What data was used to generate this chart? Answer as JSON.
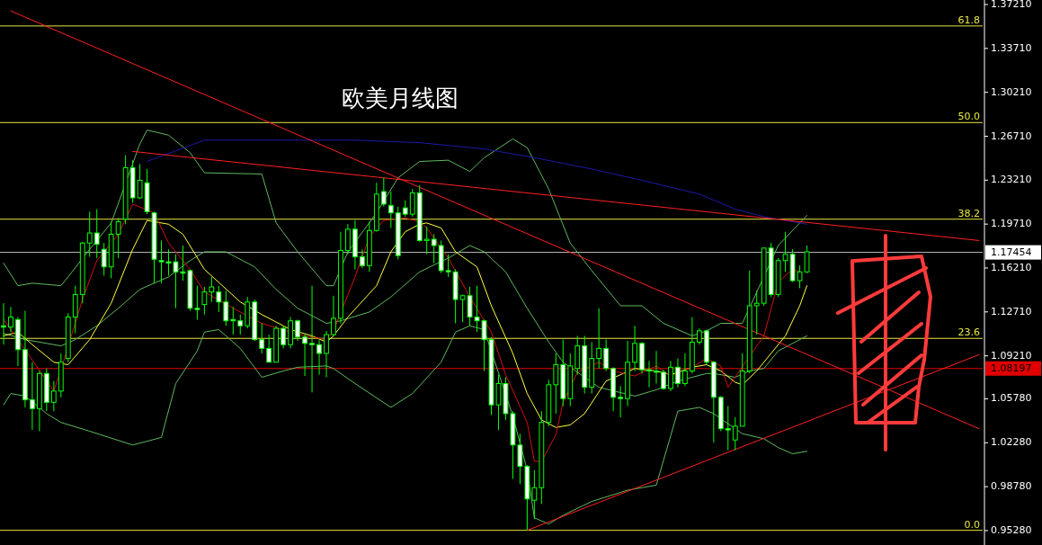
{
  "chart_data": {
    "type": "candlestick",
    "title": "欧美月线图",
    "categories": [
      null,
      null,
      null,
      null,
      null,
      null,
      null,
      null,
      null,
      null,
      null,
      null,
      null,
      null,
      null,
      null,
      null,
      null,
      null,
      null,
      null,
      null,
      null,
      null,
      null,
      null,
      null,
      null,
      null,
      null,
      null,
      null,
      null,
      null,
      null,
      null,
      null,
      null,
      null,
      null,
      null,
      null,
      null,
      null,
      null,
      null,
      null,
      null,
      null,
      null,
      null,
      null,
      null,
      null,
      null,
      null,
      null,
      null,
      null,
      null,
      null,
      null,
      null,
      null,
      null,
      null,
      null,
      null,
      null,
      null,
      null,
      null,
      null,
      null,
      null,
      null,
      null,
      null,
      null,
      null,
      null,
      null,
      null,
      null,
      null,
      null,
      null,
      null,
      null,
      null,
      null,
      null,
      null,
      null,
      null,
      null,
      null,
      null,
      null,
      null,
      null,
      null,
      null,
      null,
      null,
      null,
      null,
      null,
      null,
      null,
      null,
      null,
      null,
      null,
      null,
      null,
      null,
      null,
      null,
      null,
      null,
      null,
      null,
      null,
      null,
      null,
      null,
      null,
      null,
      null,
      null,
      null,
      null,
      null,
      null,
      null,
      null
    ],
    "ohlc": [
      [
        1.116,
        1.134,
        1.101,
        1.115
      ],
      [
        1.115,
        1.131,
        1.111,
        1.123
      ],
      [
        1.121,
        1.123,
        1.084,
        1.097
      ],
      [
        1.097,
        1.128,
        1.051,
        1.057
      ],
      [
        1.057,
        1.087,
        1.033,
        1.05
      ],
      [
        1.05,
        1.08,
        1.032,
        1.078
      ],
      [
        1.078,
        1.082,
        1.048,
        1.055
      ],
      [
        1.055,
        1.072,
        1.048,
        1.064
      ],
      [
        1.064,
        1.094,
        1.059,
        1.087
      ],
      [
        1.09,
        1.126,
        1.087,
        1.123
      ],
      [
        1.123,
        1.148,
        1.11,
        1.141
      ],
      [
        1.141,
        1.183,
        1.134,
        1.182
      ],
      [
        1.182,
        1.207,
        1.171,
        1.19
      ],
      [
        1.19,
        1.209,
        1.17,
        1.181
      ],
      [
        1.177,
        1.182,
        1.156,
        1.163
      ],
      [
        1.163,
        1.199,
        1.154,
        1.189
      ],
      [
        1.189,
        1.202,
        1.17,
        1.199
      ],
      [
        1.201,
        1.252,
        1.197,
        1.242
      ],
      [
        1.242,
        1.248,
        1.214,
        1.218
      ],
      [
        1.218,
        1.245,
        1.217,
        1.232
      ],
      [
        1.23,
        1.241,
        1.205,
        1.207
      ],
      [
        1.206,
        1.207,
        1.15,
        1.169
      ],
      [
        1.168,
        1.184,
        1.15,
        1.167
      ],
      [
        1.167,
        1.177,
        1.156,
        1.166
      ],
      [
        1.167,
        1.173,
        1.13,
        1.159
      ],
      [
        1.159,
        1.18,
        1.152,
        1.158
      ],
      [
        1.16,
        1.161,
        1.128,
        1.13
      ],
      [
        1.13,
        1.148,
        1.121,
        1.129
      ],
      [
        1.133,
        1.147,
        1.125,
        1.143
      ],
      [
        1.143,
        1.155,
        1.135,
        1.147
      ],
      [
        1.143,
        1.148,
        1.127,
        1.135
      ],
      [
        1.135,
        1.144,
        1.116,
        1.12
      ],
      [
        1.121,
        1.131,
        1.109,
        1.12
      ],
      [
        1.12,
        1.125,
        1.109,
        1.116
      ],
      [
        1.116,
        1.139,
        1.114,
        1.135
      ],
      [
        1.135,
        1.137,
        1.104,
        1.105
      ],
      [
        1.105,
        1.118,
        1.094,
        1.098
      ],
      [
        1.098,
        1.109,
        1.087,
        1.087
      ],
      [
        1.087,
        1.116,
        1.087,
        1.114
      ],
      [
        1.114,
        1.116,
        1.098,
        1.101
      ],
      [
        1.101,
        1.123,
        1.098,
        1.12
      ],
      [
        1.12,
        1.121,
        1.104,
        1.107
      ],
      [
        1.107,
        1.11,
        1.076,
        1.102
      ],
      [
        1.102,
        1.148,
        1.063,
        1.101
      ],
      [
        1.101,
        1.105,
        1.077,
        1.094
      ],
      [
        1.094,
        1.112,
        1.075,
        1.109
      ],
      [
        1.109,
        1.14,
        1.108,
        1.122
      ],
      [
        1.122,
        1.191,
        1.118,
        1.176
      ],
      [
        1.176,
        1.197,
        1.173,
        1.193
      ],
      [
        1.193,
        1.2,
        1.161,
        1.171
      ],
      [
        1.171,
        1.177,
        1.162,
        1.164
      ],
      [
        1.164,
        1.199,
        1.159,
        1.192
      ],
      [
        1.192,
        1.23,
        1.191,
        1.221
      ],
      [
        1.223,
        1.234,
        1.211,
        1.213
      ],
      [
        1.212,
        1.223,
        1.194,
        1.206
      ],
      [
        1.206,
        1.211,
        1.169,
        1.172
      ],
      [
        1.21,
        1.216,
        1.203,
        1.205
      ],
      [
        1.205,
        1.225,
        1.203,
        1.222
      ],
      [
        1.222,
        1.228,
        1.183,
        1.184
      ],
      [
        1.184,
        1.195,
        1.173,
        1.185
      ],
      [
        1.185,
        1.189,
        1.166,
        1.18
      ],
      [
        1.18,
        1.184,
        1.158,
        1.16
      ],
      [
        1.16,
        1.173,
        1.155,
        1.159
      ],
      [
        1.159,
        1.161,
        1.118,
        1.137
      ],
      [
        1.137,
        1.141,
        1.119,
        1.14
      ],
      [
        1.14,
        1.147,
        1.116,
        1.123
      ],
      [
        1.123,
        1.148,
        1.111,
        1.12
      ],
      [
        1.12,
        1.121,
        1.08,
        1.105
      ],
      [
        1.105,
        1.107,
        1.045,
        1.053
      ],
      [
        1.053,
        1.077,
        1.033,
        1.07
      ],
      [
        1.07,
        1.075,
        1.041,
        1.046
      ],
      [
        1.046,
        1.048,
        0.994,
        1.021
      ],
      [
        1.021,
        1.03,
        0.99,
        1.004
      ],
      [
        1.004,
        1.005,
        0.953,
        0.978
      ],
      [
        0.977,
        1.001,
        0.962,
        0.987
      ],
      [
        0.987,
        1.048,
        0.974,
        1.039
      ],
      [
        1.039,
        1.073,
        1.036,
        1.069
      ],
      [
        1.069,
        1.094,
        1.046,
        1.085
      ],
      [
        1.085,
        1.105,
        1.052,
        1.058
      ],
      [
        1.058,
        1.094,
        1.052,
        1.084
      ],
      [
        1.082,
        1.108,
        1.077,
        1.1
      ],
      [
        1.1,
        1.108,
        1.062,
        1.067
      ],
      [
        1.067,
        1.103,
        1.062,
        1.09
      ],
      [
        1.09,
        1.13,
        1.082,
        1.098
      ],
      [
        1.098,
        1.105,
        1.08,
        1.082
      ],
      [
        1.082,
        1.083,
        1.048,
        1.059
      ],
      [
        1.059,
        1.068,
        1.043,
        1.058
      ],
      [
        1.058,
        1.104,
        1.052,
        1.087
      ],
      [
        1.087,
        1.116,
        1.08,
        1.102
      ],
      [
        1.102,
        1.103,
        1.078,
        1.081
      ],
      [
        1.081,
        1.088,
        1.067,
        1.08
      ],
      [
        1.08,
        1.096,
        1.07,
        1.079
      ],
      [
        1.079,
        1.081,
        1.065,
        1.066
      ],
      [
        1.066,
        1.088,
        1.064,
        1.083
      ],
      [
        1.083,
        1.09,
        1.067,
        1.07
      ],
      [
        1.07,
        1.094,
        1.068,
        1.08
      ],
      [
        1.08,
        1.123,
        1.078,
        1.103
      ],
      [
        1.103,
        1.114,
        1.101,
        1.112
      ],
      [
        1.112,
        1.113,
        1.085,
        1.087
      ],
      [
        1.087,
        1.088,
        1.023,
        1.059
      ],
      [
        1.059,
        1.06,
        1.032,
        1.034
      ],
      [
        1.034,
        1.052,
        1.017,
        1.033
      ],
      [
        1.025,
        1.043,
        1.017,
        1.036
      ],
      [
        1.036,
        1.094,
        1.036,
        1.08
      ],
      [
        1.08,
        1.16,
        1.078,
        1.132
      ],
      [
        1.132,
        1.144,
        1.109,
        1.134
      ],
      [
        1.134,
        1.178,
        1.132,
        1.178
      ],
      [
        1.178,
        1.182,
        1.139,
        1.141
      ],
      [
        1.141,
        1.17,
        1.139,
        1.168
      ],
      [
        1.168,
        1.191,
        1.159,
        1.173
      ],
      [
        1.173,
        1.177,
        1.151,
        1.152
      ],
      [
        1.152,
        1.164,
        1.146,
        1.159
      ],
      [
        1.159,
        1.18,
        1.158,
        1.175
      ],
      null,
      null,
      null,
      null,
      null,
      null,
      null,
      null,
      null,
      null,
      null,
      null,
      null,
      null,
      null,
      null,
      null,
      null,
      null,
      null,
      null,
      null,
      null,
      null
    ],
    "series": [
      {
        "type": "line",
        "color": "#5fb85f",
        "values": [
          1.166,
          null,
          1.148,
          null,
          1.15,
          null,
          null,
          null,
          1.148,
          1.155,
          null,
          null,
          1.177,
          null,
          null,
          1.198,
          null,
          null,
          null,
          1.261,
          1.272,
          null,
          null,
          1.268,
          null,
          null,
          1.254,
          null,
          1.238,
          null,
          null,
          null,
          null,
          null,
          null,
          null,
          1.237,
          null,
          1.198,
          null,
          null,
          1.175,
          null,
          null,
          null,
          1.148,
          1.148,
          null,
          1.175,
          null,
          null,
          null,
          1.206,
          null,
          null,
          1.234,
          null,
          null,
          1.247,
          null,
          null,
          null,
          1.248,
          null,
          null,
          1.239,
          null,
          1.25,
          null,
          null,
          null,
          1.265,
          null,
          1.258,
          null,
          null,
          1.225,
          null,
          null,
          1.182,
          null,
          null,
          1.16,
          null,
          null,
          null,
          1.132,
          null,
          null,
          1.132,
          null,
          null,
          1.118,
          null,
          null,
          null,
          1.108,
          null,
          1.112,
          null,
          1.118,
          null,
          null,
          1.118,
          null,
          null,
          null,
          null,
          1.18,
          null,
          null,
          null,
          1.204,
          null,
          null,
          null,
          null,
          null,
          null,
          null,
          null,
          null,
          null,
          null,
          null,
          null,
          null,
          null,
          null,
          null,
          null,
          null,
          null,
          null,
          null,
          null,
          null
        ]
      },
      {
        "type": "line",
        "color": "#5fb85f",
        "values": [
          1.11,
          null,
          null,
          1.105,
          null,
          null,
          null,
          null,
          1.1,
          null,
          1.105,
          null,
          null,
          1.116,
          null,
          null,
          1.13,
          null,
          null,
          1.145,
          null,
          null,
          null,
          1.155,
          null,
          null,
          1.168,
          null,
          1.175,
          null,
          null,
          1.175,
          null,
          null,
          null,
          1.163,
          null,
          null,
          1.145,
          null,
          null,
          1.13,
          null,
          null,
          null,
          1.118,
          null,
          1.12,
          null,
          null,
          null,
          1.127,
          null,
          null,
          1.139,
          null,
          null,
          null,
          1.159,
          null,
          null,
          null,
          1.17,
          null,
          null,
          1.18,
          null,
          1.175,
          null,
          null,
          1.159,
          null,
          null,
          1.13,
          null,
          null,
          1.103,
          null,
          1.087,
          null,
          null,
          null,
          null,
          1.067,
          null,
          null,
          null,
          null,
          1.06,
          null,
          null,
          1.065,
          null,
          null,
          1.072,
          null,
          null,
          null,
          1.078,
          1.078,
          null,
          null,
          1.075,
          null,
          1.08,
          null,
          1.082,
          null,
          1.096,
          null,
          null,
          null,
          1.108,
          null,
          null,
          null,
          null,
          null,
          null,
          null,
          null,
          null,
          null,
          null,
          null,
          null,
          null,
          null,
          null,
          null,
          null,
          null,
          null,
          null,
          null,
          null,
          null
        ]
      },
      {
        "type": "line",
        "color": "#5fb85f",
        "values": [
          1.053,
          1.062,
          null,
          1.06,
          null,
          null,
          1.046,
          null,
          1.039,
          null,
          null,
          null,
          1.032,
          null,
          null,
          null,
          null,
          null,
          1.021,
          null,
          null,
          null,
          1.027,
          null,
          1.07,
          null,
          null,
          1.096,
          1.111,
          null,
          1.113,
          null,
          null,
          1.098,
          null,
          null,
          1.075,
          null,
          null,
          1.08,
          null,
          1.083,
          null,
          null,
          null,
          1.084,
          1.082,
          null,
          null,
          1.07,
          null,
          null,
          null,
          null,
          1.051,
          null,
          null,
          1.062,
          null,
          null,
          null,
          1.087,
          null,
          1.111,
          null,
          1.116,
          null,
          1.113,
          null,
          null,
          null,
          1.044,
          null,
          1.001,
          0.963,
          null,
          0.958,
          null,
          0.965,
          null,
          null,
          null,
          0.976,
          null,
          null,
          null,
          null,
          0.985,
          null,
          null,
          null,
          0.989,
          null,
          null,
          1.048,
          null,
          null,
          1.051,
          null,
          1.046,
          null,
          null,
          null,
          1.03,
          null,
          null,
          1.026,
          null,
          1.019,
          null,
          1.014,
          null,
          1.016,
          null,
          null,
          null,
          null,
          null,
          null,
          null,
          null,
          null,
          null,
          null,
          null,
          null,
          null,
          null,
          null,
          null,
          null,
          null,
          null,
          null,
          null,
          null,
          null
        ]
      },
      {
        "type": "line",
        "color": "#1a1aa8",
        "values": [
          null,
          null,
          null,
          null,
          null,
          null,
          null,
          null,
          null,
          null,
          null,
          null,
          null,
          null,
          null,
          null,
          null,
          null,
          null,
          null,
          1.247,
          null,
          null,
          null,
          null,
          null,
          null,
          null,
          1.264,
          null,
          null,
          null,
          null,
          null,
          null,
          null,
          null,
          1.264,
          null,
          null,
          null,
          null,
          null,
          null,
          null,
          null,
          null,
          null,
          null,
          1.264,
          null,
          null,
          null,
          null,
          null,
          null,
          null,
          null,
          1.262,
          null,
          null,
          null,
          null,
          null,
          null,
          null,
          null,
          1.257,
          null,
          null,
          null,
          null,
          null,
          null,
          1.25,
          null,
          null,
          null,
          null,
          null,
          null,
          null,
          1.241,
          null,
          null,
          null,
          null,
          null,
          null,
          1.232,
          null,
          null,
          null,
          null,
          null,
          null,
          null,
          1.221,
          null,
          null,
          null,
          null,
          1.209,
          null,
          null,
          null,
          1.203,
          null,
          null,
          null,
          null,
          null,
          1.197,
          null,
          null,
          null,
          null,
          null,
          null,
          null,
          null,
          null,
          null,
          null,
          null,
          null,
          null,
          null,
          null,
          null,
          null,
          null,
          null,
          null,
          null,
          null,
          null
        ]
      },
      {
        "type": "line",
        "color": "#ffff40",
        "values": [
          1.108,
          null,
          1.111,
          null,
          1.101,
          null,
          null,
          1.087,
          null,
          1.085,
          null,
          null,
          1.105,
          null,
          null,
          1.134,
          null,
          null,
          1.177,
          null,
          1.2,
          null,
          null,
          1.197,
          null,
          1.189,
          null,
          null,
          1.161,
          null,
          null,
          null,
          null,
          1.135,
          null,
          null,
          1.125,
          null,
          null,
          null,
          1.113,
          null,
          null,
          1.108,
          null,
          1.103,
          1.108,
          null,
          1.123,
          null,
          null,
          null,
          1.148,
          null,
          1.175,
          null,
          1.191,
          null,
          1.197,
          1.198,
          null,
          1.194,
          null,
          1.175,
          null,
          null,
          1.163,
          null,
          1.132,
          null,
          null,
          1.094,
          null,
          1.062,
          null,
          1.041,
          null,
          1.035,
          null,
          1.037,
          null,
          1.046,
          null,
          null,
          1.072,
          null,
          1.077,
          null,
          1.082,
          null,
          null,
          1.08,
          null,
          1.077,
          null,
          null,
          1.083,
          null,
          1.085,
          null,
          1.08,
          null,
          1.071,
          1.069,
          null,
          1.08,
          null,
          1.094,
          null,
          1.108,
          null,
          1.132,
          1.148,
          null,
          null,
          null,
          null,
          null,
          null,
          null,
          null,
          null,
          null,
          null,
          null,
          null,
          null,
          null,
          null,
          null,
          null,
          null,
          null,
          null,
          null,
          null,
          null
        ]
      },
      {
        "type": "line",
        "color": "#d01010",
        "values": [
          1.121,
          null,
          null,
          1.097,
          null,
          null,
          null,
          1.064,
          1.081,
          null,
          null,
          1.137,
          null,
          1.168,
          null,
          null,
          1.189,
          null,
          1.213,
          null,
          null,
          1.206,
          null,
          1.182,
          null,
          null,
          1.161,
          null,
          1.143,
          null,
          null,
          null,
          null,
          1.127,
          null,
          null,
          1.118,
          null,
          null,
          null,
          1.111,
          null,
          1.108,
          null,
          null,
          1.105,
          1.112,
          null,
          null,
          1.155,
          null,
          1.187,
          null,
          1.2,
          null,
          null,
          1.202,
          null,
          1.199,
          1.194,
          null,
          null,
          1.17,
          null,
          null,
          1.139,
          null,
          null,
          1.111,
          null,
          1.077,
          null,
          null,
          1.039,
          1.008,
          1.008,
          null,
          1.029,
          1.055,
          null,
          1.079,
          null,
          null,
          1.087,
          null,
          1.08,
          null,
          null,
          1.076,
          null,
          null,
          1.084,
          null,
          1.076,
          null,
          null,
          1.083,
          null,
          1.09,
          null,
          1.084,
          1.067,
          null,
          null,
          null,
          null,
          1.108,
          null,
          1.151,
          null,
          1.161,
          1.159,
          null,
          null,
          null,
          null,
          null,
          null,
          null,
          null,
          null,
          null,
          null,
          null,
          null,
          null,
          null,
          null,
          null,
          null,
          null,
          null,
          null,
          null,
          null,
          null,
          null
        ]
      },
      {
        "type": "line",
        "color": "#ff2020",
        "values": [
          null,
          1.367,
          null,
          null,
          null,
          null,
          null,
          null,
          null,
          null,
          null,
          null,
          null,
          null,
          null,
          null,
          null,
          null,
          null,
          null,
          null,
          null,
          null,
          null,
          null,
          null,
          null,
          null,
          null,
          null,
          null,
          null,
          null,
          null,
          null,
          null,
          null,
          null,
          null,
          null,
          null,
          null,
          null,
          null,
          null,
          null,
          null,
          null,
          null,
          null,
          null,
          null,
          null,
          null,
          null,
          null,
          null,
          null,
          null,
          null,
          null,
          null,
          null,
          null,
          null,
          null,
          null,
          null,
          null,
          null,
          null,
          null,
          null,
          null,
          null,
          null,
          null,
          null,
          null,
          null,
          null,
          null,
          null,
          null,
          null,
          null,
          null,
          null,
          null,
          null,
          null,
          null,
          null,
          null,
          null,
          null,
          null,
          null,
          null,
          null,
          null,
          null,
          null,
          null,
          null,
          null,
          null,
          null,
          null,
          null,
          null,
          null,
          null,
          null,
          null,
          null,
          null,
          null,
          null,
          null,
          null,
          null,
          null,
          null,
          null,
          null,
          null,
          null,
          null,
          null,
          null,
          null,
          null,
          null,
          null,
          null,
          1.034
        ]
      },
      {
        "type": "line",
        "color": "#ff2020",
        "values": [
          null,
          null,
          null,
          null,
          null,
          null,
          null,
          null,
          null,
          null,
          null,
          null,
          null,
          null,
          null,
          null,
          null,
          null,
          1.255,
          null,
          null,
          null,
          null,
          null,
          null,
          null,
          null,
          null,
          null,
          null,
          null,
          null,
          null,
          null,
          null,
          null,
          null,
          null,
          null,
          null,
          null,
          null,
          null,
          null,
          null,
          null,
          null,
          null,
          null,
          null,
          null,
          null,
          null,
          null,
          null,
          null,
          null,
          null,
          null,
          null,
          null,
          null,
          null,
          null,
          null,
          null,
          null,
          null,
          null,
          null,
          null,
          null,
          null,
          null,
          null,
          null,
          null,
          null,
          null,
          null,
          null,
          null,
          null,
          null,
          null,
          null,
          null,
          null,
          null,
          null,
          null,
          null,
          null,
          null,
          null,
          null,
          null,
          null,
          null,
          null,
          null,
          null,
          null,
          null,
          null,
          null,
          null,
          null,
          null,
          null,
          null,
          null,
          null,
          null,
          null,
          null,
          null,
          null,
          null,
          null,
          null,
          null,
          null,
          null,
          null,
          null,
          null,
          null,
          null,
          null,
          null,
          null,
          null,
          null,
          null,
          null,
          1.184
        ]
      },
      {
        "type": "line",
        "color": "#ff2020",
        "values": [
          null,
          null,
          null,
          null,
          null,
          null,
          null,
          null,
          null,
          null,
          null,
          null,
          null,
          null,
          null,
          null,
          null,
          null,
          null,
          null,
          null,
          null,
          null,
          null,
          null,
          null,
          null,
          null,
          null,
          null,
          null,
          null,
          null,
          null,
          null,
          null,
          null,
          null,
          null,
          null,
          null,
          null,
          null,
          null,
          null,
          null,
          null,
          null,
          null,
          null,
          null,
          null,
          null,
          null,
          null,
          null,
          null,
          null,
          null,
          null,
          null,
          null,
          null,
          null,
          null,
          null,
          null,
          null,
          null,
          null,
          null,
          null,
          null,
          0.953,
          null,
          null,
          null,
          null,
          null,
          null,
          null,
          null,
          null,
          null,
          null,
          null,
          null,
          null,
          null,
          null,
          null,
          null,
          null,
          null,
          null,
          null,
          null,
          null,
          null,
          null,
          null,
          null,
          null,
          null,
          null,
          null,
          null,
          null,
          null,
          null,
          null,
          null,
          null,
          null,
          null,
          null,
          null,
          null,
          null,
          null,
          null,
          null,
          null,
          null,
          null,
          null,
          null,
          null,
          null,
          null,
          null,
          null,
          null,
          null,
          null,
          null,
          1.093
        ]
      }
    ],
    "ref_lines": [
      {
        "axis": "y",
        "value": 1.355,
        "color": "#e8e840"
      },
      {
        "axis": "y",
        "value": 1.278,
        "color": "#e8e840"
      },
      {
        "axis": "y",
        "value": 1.201,
        "color": "#e8e840"
      },
      {
        "axis": "y",
        "value": 1.106,
        "color": "#e8e840"
      },
      {
        "axis": "y",
        "value": 0.953,
        "color": "#e8e840"
      },
      {
        "axis": "y",
        "value": 1.17454,
        "label": "1.17454",
        "color": "#c0c0c0"
      },
      {
        "axis": "y",
        "value": 1.08197,
        "label": "1.08197",
        "color": "#e00000"
      }
    ],
    "annotations": [
      {
        "text": "61.8",
        "y": 1.355
      },
      {
        "text": "50.0",
        "y": 1.278
      },
      {
        "text": "38.2",
        "y": 1.201
      },
      {
        "text": "23.6",
        "y": 1.106
      },
      {
        "text": "0.0",
        "y": 0.953
      }
    ],
    "ylim": [
      0.9413,
      1.3757
    ],
    "yticks": [
      {
        "value": 1.3721,
        "label": "1.37210"
      },
      {
        "value": 1.3371,
        "label": "1.33710"
      },
      {
        "value": 1.3021,
        "label": "1.30210"
      },
      {
        "value": 1.2671,
        "label": "1.26710"
      },
      {
        "value": 1.2321,
        "label": "1.23210"
      },
      {
        "value": 1.1971,
        "label": "1.19710"
      },
      {
        "value": 1.1621,
        "label": "1.16210"
      },
      {
        "value": 1.1271,
        "label": "1.12710"
      },
      {
        "value": 1.0921,
        "label": "1.09210"
      },
      {
        "value": 1.0578,
        "label": "1.05780"
      },
      {
        "value": 1.0228,
        "label": "1.02280"
      },
      {
        "value": 0.9878,
        "label": "0.98780"
      },
      {
        "value": 0.9528,
        "label": "0.95280"
      }
    ],
    "tick_labels": "y"
  }
}
